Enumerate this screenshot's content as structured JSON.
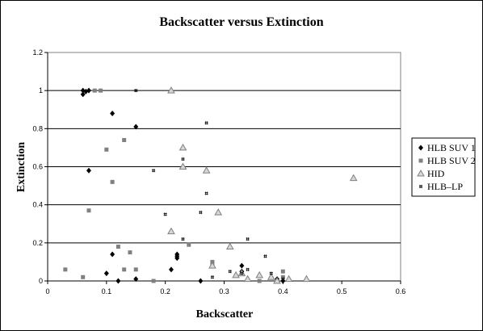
{
  "chart_data": {
    "type": "scatter",
    "title": "Backscatter versus Extinction",
    "xlabel": "Backscatter",
    "ylabel": "Extinction",
    "xlim": [
      0,
      0.6
    ],
    "ylim": [
      0,
      1.2
    ],
    "xticks": [
      0,
      0.1,
      0.2,
      0.3,
      0.4,
      0.5,
      0.6
    ],
    "yticks": [
      0,
      0.2,
      0.4,
      0.6,
      0.8,
      1,
      1.2
    ],
    "xtick_labels": [
      "0",
      "0.1",
      "0.2",
      "0.3",
      "0.4",
      "0.5",
      "0.6"
    ],
    "ytick_labels": [
      "0",
      "0.2",
      "0.4",
      "0.6",
      "0.8",
      "1",
      "1.2"
    ],
    "grid": "horizontal major",
    "legend_position": "right",
    "series": [
      {
        "name": "HLB SUV 1",
        "marker": "diamond",
        "color": "#000000",
        "points": [
          [
            0.06,
            0.98
          ],
          [
            0.06,
            1.0
          ],
          [
            0.065,
            0.995
          ],
          [
            0.07,
            1.0
          ],
          [
            0.11,
            0.88
          ],
          [
            0.15,
            0.81
          ],
          [
            0.07,
            0.58
          ],
          [
            0.1,
            0.04
          ],
          [
            0.11,
            0.14
          ],
          [
            0.12,
            0.0
          ],
          [
            0.15,
            0.01
          ],
          [
            0.21,
            0.06
          ],
          [
            0.22,
            0.12
          ],
          [
            0.22,
            0.13
          ],
          [
            0.22,
            0.14
          ],
          [
            0.26,
            0.0
          ],
          [
            0.33,
            0.08
          ],
          [
            0.33,
            0.05
          ],
          [
            0.38,
            0.02
          ],
          [
            0.39,
            0.01
          ],
          [
            0.4,
            0.0
          ]
        ]
      },
      {
        "name": "HLB SUV 2",
        "marker": "square",
        "color": "#808080",
        "points": [
          [
            0.08,
            1.0
          ],
          [
            0.09,
            1.0
          ],
          [
            0.1,
            0.69
          ],
          [
            0.13,
            0.74
          ],
          [
            0.11,
            0.52
          ],
          [
            0.07,
            0.37
          ],
          [
            0.03,
            0.06
          ],
          [
            0.06,
            0.02
          ],
          [
            0.12,
            0.18
          ],
          [
            0.13,
            0.06
          ],
          [
            0.14,
            0.15
          ],
          [
            0.15,
            0.06
          ],
          [
            0.18,
            0.0
          ],
          [
            0.24,
            0.19
          ],
          [
            0.28,
            0.1
          ],
          [
            0.28,
            0.09
          ],
          [
            0.36,
            0.0
          ],
          [
            0.4,
            0.05
          ],
          [
            0.4,
            0.02
          ]
        ]
      },
      {
        "name": "HID",
        "marker": "triangle",
        "color": "#808080",
        "points": [
          [
            0.21,
            1.0
          ],
          [
            0.23,
            0.7
          ],
          [
            0.23,
            0.6
          ],
          [
            0.27,
            0.58
          ],
          [
            0.29,
            0.36
          ],
          [
            0.21,
            0.26
          ],
          [
            0.31,
            0.18
          ],
          [
            0.28,
            0.08
          ],
          [
            0.32,
            0.03
          ],
          [
            0.33,
            0.04
          ],
          [
            0.34,
            0.01
          ],
          [
            0.36,
            0.03
          ],
          [
            0.38,
            0.02
          ],
          [
            0.39,
            0.0
          ],
          [
            0.41,
            0.01
          ],
          [
            0.44,
            0.01
          ],
          [
            0.52,
            0.54
          ]
        ]
      },
      {
        "name": "HLB–LP",
        "marker": "hash",
        "color": "#000000",
        "points": [
          [
            0.15,
            1.0
          ],
          [
            0.27,
            0.83
          ],
          [
            0.23,
            0.64
          ],
          [
            0.18,
            0.58
          ],
          [
            0.27,
            0.46
          ],
          [
            0.2,
            0.35
          ],
          [
            0.26,
            0.36
          ],
          [
            0.23,
            0.22
          ],
          [
            0.34,
            0.22
          ],
          [
            0.37,
            0.13
          ],
          [
            0.31,
            0.05
          ],
          [
            0.34,
            0.06
          ],
          [
            0.28,
            0.02
          ],
          [
            0.33,
            0.04
          ],
          [
            0.38,
            0.04
          ],
          [
            0.4,
            0.01
          ]
        ]
      }
    ]
  }
}
